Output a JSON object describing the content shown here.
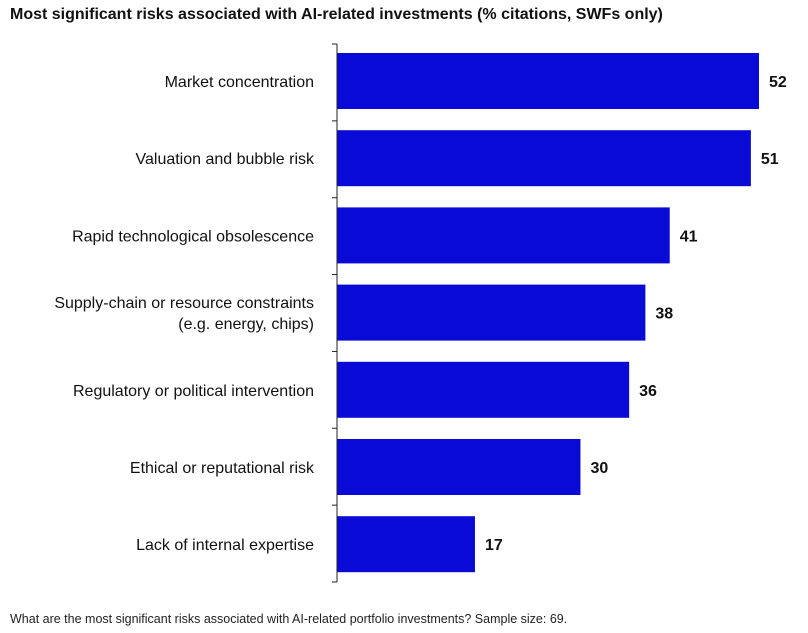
{
  "title": "Most significant risks associated with AI-related investments (% citations, SWFs only)",
  "footnote": "What are the most significant risks associated with AI-related portfolio investments? Sample size: 69.",
  "colors": {
    "bar": "#0a0ad6",
    "axis": "#222222",
    "text": "#111111"
  },
  "chart_data": {
    "type": "bar",
    "orientation": "horizontal",
    "categories": [
      [
        "Market concentration"
      ],
      [
        "Valuation and bubble risk"
      ],
      [
        "Rapid technological obsolescence"
      ],
      [
        "Supply-chain or resource constraints",
        "(e.g. energy, chips)"
      ],
      [
        "Regulatory or political intervention"
      ],
      [
        "Ethical or reputational risk"
      ],
      [
        "Lack of internal expertise"
      ]
    ],
    "values": [
      52,
      51,
      41,
      38,
      36,
      30,
      17
    ],
    "xlim": [
      0,
      52
    ],
    "grid": false,
    "legend": "none"
  }
}
